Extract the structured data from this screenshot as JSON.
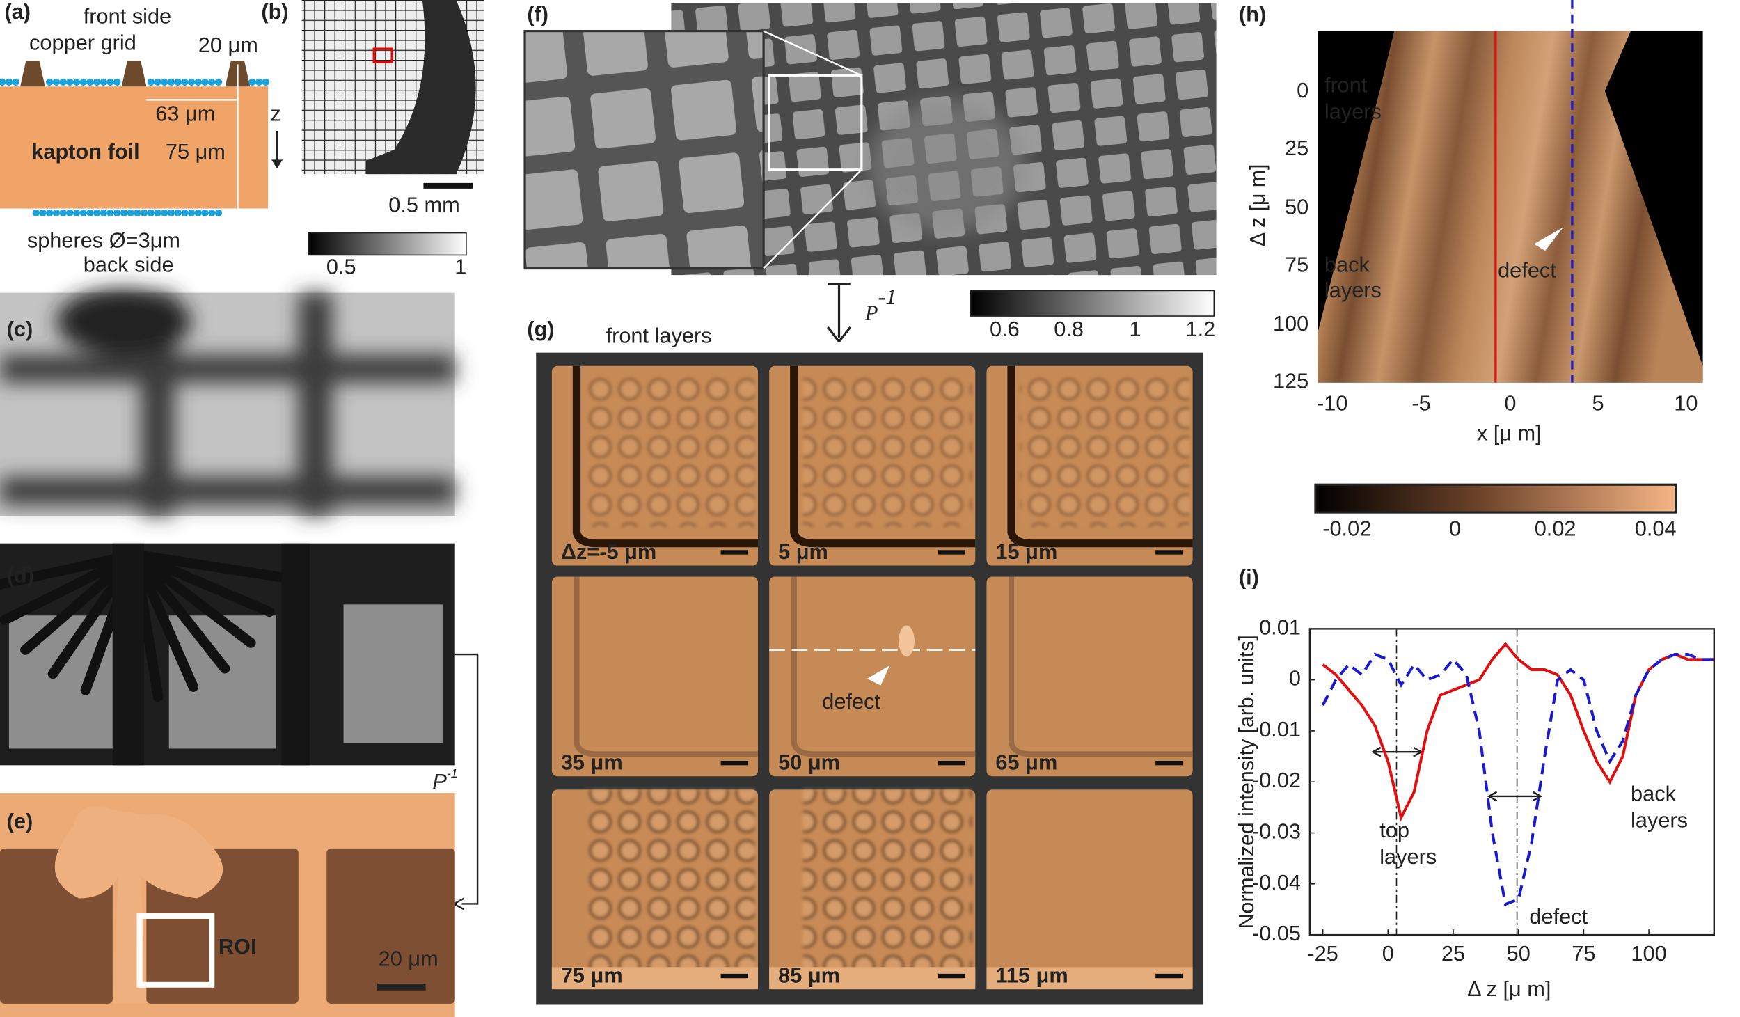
{
  "panels": {
    "a": {
      "label": "(a)",
      "front": "front side",
      "grid": "copper grid",
      "height": "20 μm",
      "pitch": "63 μm",
      "foil": "kapton foil",
      "thickness": "75 μm",
      "axis": "z",
      "spheres": "spheres Ø=3μm",
      "back": "back side"
    },
    "b": {
      "label": "(b)",
      "scale": "0.5 mm",
      "colorbar": [
        "0.5",
        "1"
      ]
    },
    "c": {
      "label": "(c)"
    },
    "d": {
      "label": "(d)",
      "operator": {
        "base": "P",
        "exp": "-1"
      }
    },
    "e": {
      "label": "(e)",
      "roi": "ROI",
      "scale": "20 μm"
    },
    "f": {
      "label": "(f)",
      "operator": {
        "base": "P",
        "exp": "-1"
      },
      "colorbar": [
        "0.6",
        "0.8",
        "1",
        "1.2"
      ]
    },
    "g": {
      "label": "(g)",
      "title": "front layers",
      "tiles": [
        "Δz=-5 μm",
        "5 μm",
        "15 μm",
        "35 μm",
        "50 μm",
        "65 μm",
        "75 μm",
        "85 μm",
        "115 μm"
      ],
      "defect": "defect"
    },
    "h": {
      "label": "(h)",
      "front": [
        "front",
        "layers"
      ],
      "back": [
        "back",
        "layers"
      ],
      "defect": "defect",
      "xticks": [
        "-10",
        "-5",
        "0",
        "5",
        "10"
      ],
      "yticks": [
        "0",
        "25",
        "50",
        "75",
        "100",
        "125"
      ],
      "xlabel": "x [μ m]",
      "ylabel": "Δ z [μ m]",
      "colorbar": [
        "-0.02",
        "0",
        "0.02",
        "0.04"
      ]
    }
  },
  "chart_data": {
    "type": "line",
    "label": "(i)",
    "x_label": "Δ z [μ m]",
    "y_label": "Normalized intensity [arb. units]",
    "x": [
      -25,
      -20,
      -15,
      -10,
      -5,
      0,
      5,
      10,
      15,
      20,
      25,
      30,
      35,
      40,
      45,
      50,
      55,
      60,
      65,
      70,
      75,
      80,
      85,
      90,
      95,
      100,
      105,
      110,
      115,
      120,
      125
    ],
    "series": [
      {
        "color": "#e01010",
        "style": "solid",
        "values": [
          0.003,
          0.001,
          -0.002,
          -0.005,
          -0.009,
          -0.016,
          -0.027,
          -0.022,
          -0.01,
          -0.003,
          -0.002,
          -0.001,
          0.0,
          0.004,
          0.007,
          0.004,
          0.002,
          0.002,
          0.001,
          -0.003,
          -0.01,
          -0.016,
          -0.02,
          -0.015,
          -0.003,
          0.002,
          0.004,
          0.005,
          0.004,
          0.004,
          0.004
        ]
      },
      {
        "color": "#1a1ad0",
        "style": "dashed",
        "values": [
          -0.005,
          0.0,
          0.003,
          0.001,
          0.005,
          0.004,
          -0.001,
          0.003,
          0.0,
          0.001,
          0.004,
          0.001,
          -0.01,
          -0.03,
          -0.044,
          -0.043,
          -0.032,
          -0.015,
          0.0,
          0.002,
          0.0,
          -0.01,
          -0.016,
          -0.012,
          -0.003,
          0.002,
          0.004,
          0.005,
          0.005,
          0.004,
          0.004
        ]
      }
    ],
    "xlim": [
      -30,
      125
    ],
    "ylim": [
      -0.05,
      0.01
    ],
    "xticks": [
      -25,
      0,
      25,
      50,
      75,
      100
    ],
    "yticks": [
      -0.05,
      -0.04,
      -0.03,
      -0.02,
      -0.01,
      0,
      0.01
    ],
    "annotations": {
      "top": [
        "top",
        "layers"
      ],
      "back": [
        "back",
        "layers"
      ],
      "defect": "defect"
    }
  }
}
